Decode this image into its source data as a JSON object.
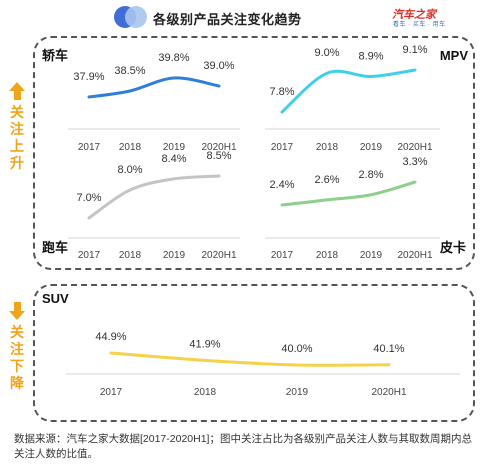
{
  "header": {
    "title": "各级别产品关注变化趋势",
    "logo_text": "汽车之家",
    "logo_subtext": "看车 · 买车 · 用车"
  },
  "side_labels": {
    "up": "关注上升",
    "down": "关注下降"
  },
  "colors": {
    "arrow": "#f0a41a",
    "sedan": "#2f7fd6",
    "mpv": "#3fd0e8",
    "sports": "#c4c4c4",
    "pickup": "#8dcf8b",
    "suv": "#f4d24b"
  },
  "chart_data": [
    {
      "type": "line",
      "title": "轿车",
      "x": [
        "2017",
        "2018",
        "2019",
        "2020H1"
      ],
      "series": [
        {
          "values": [
            37.9,
            38.5,
            39.8,
            39.0
          ]
        }
      ],
      "data_labels": [
        "37.9%",
        "38.5%",
        "39.8%",
        "39.0%"
      ]
    },
    {
      "type": "line",
      "title": "MPV",
      "x": [
        "2017",
        "2018",
        "2019",
        "2020H1"
      ],
      "series": [
        {
          "values": [
            7.8,
            9.0,
            8.9,
            9.1
          ]
        }
      ],
      "data_labels": [
        "7.8%",
        "9.0%",
        "8.9%",
        "9.1%"
      ]
    },
    {
      "type": "line",
      "title": "跑车",
      "x": [
        "2017",
        "2018",
        "2019",
        "2020H1"
      ],
      "series": [
        {
          "values": [
            7.0,
            8.0,
            8.4,
            8.5
          ]
        }
      ],
      "data_labels": [
        "7.0%",
        "8.0%",
        "8.4%",
        "8.5%"
      ]
    },
    {
      "type": "line",
      "title": "皮卡",
      "x": [
        "2017",
        "2018",
        "2019",
        "2020H1"
      ],
      "series": [
        {
          "values": [
            2.4,
            2.6,
            2.8,
            3.3
          ]
        }
      ],
      "data_labels": [
        "2.4%",
        "2.6%",
        "2.8%",
        "3.3%"
      ]
    },
    {
      "type": "line",
      "title": "SUV",
      "x": [
        "2017",
        "2018",
        "2019",
        "2020H1"
      ],
      "series": [
        {
          "values": [
            44.9,
            41.9,
            40.0,
            40.1
          ]
        }
      ],
      "data_labels": [
        "44.9%",
        "41.9%",
        "40.0%",
        "40.1%"
      ]
    }
  ],
  "footnote": "数据来源：汽车之家大数据[2017-2020H1]；图中关注占比为各级别产品关注人数与其取数周期内总关注人数的比值。"
}
